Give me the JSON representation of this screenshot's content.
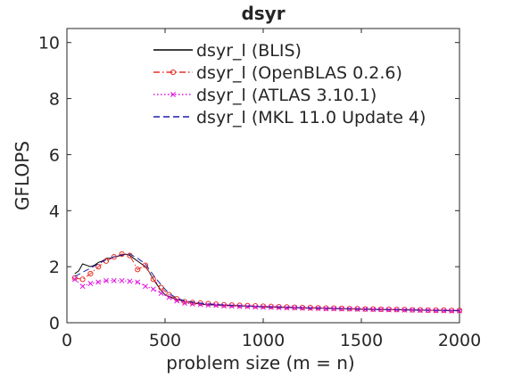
{
  "chart_data": {
    "type": "line",
    "title": "dsyr",
    "xlabel": "problem size (m = n)",
    "ylabel": "GFLOPS",
    "xlim": [
      0,
      2000
    ],
    "ylim": [
      0,
      10.5
    ],
    "xticks": [
      0,
      500,
      1000,
      1500,
      2000
    ],
    "yticks": [
      0,
      2,
      4,
      6,
      8,
      10
    ],
    "xtick_labels": [
      "0",
      "500",
      "1000",
      "1500",
      "2000"
    ],
    "ytick_labels": [
      "0",
      "2",
      "4",
      "6",
      "8",
      "10"
    ],
    "grid": false,
    "legend_position": "top",
    "series": [
      {
        "name": "dsyr_l (BLIS)",
        "color": "#000000",
        "style": "solid",
        "marker": "none",
        "x": [
          40,
          60,
          80,
          100,
          120,
          140,
          160,
          180,
          200,
          220,
          240,
          260,
          280,
          300,
          320,
          340,
          360,
          380,
          400,
          420,
          440,
          460,
          480,
          500,
          550,
          600,
          650,
          700,
          800,
          900,
          1000,
          1100,
          1200,
          1300,
          1400,
          1500,
          1600,
          1700,
          1800,
          1900,
          2000
        ],
        "y": [
          1.75,
          1.85,
          2.1,
          2.05,
          2.0,
          2.05,
          2.15,
          2.2,
          2.3,
          2.3,
          2.35,
          2.38,
          2.4,
          2.45,
          2.4,
          2.3,
          2.2,
          2.1,
          2.0,
          1.8,
          1.55,
          1.35,
          1.15,
          1.0,
          0.85,
          0.75,
          0.7,
          0.65,
          0.62,
          0.6,
          0.57,
          0.55,
          0.53,
          0.52,
          0.5,
          0.48,
          0.47,
          0.46,
          0.45,
          0.44,
          0.43
        ]
      },
      {
        "name": "dsyr_l (OpenBLAS 0.2.6)",
        "color": "#e8312a",
        "style": "dashdot",
        "marker": "circle",
        "x": [
          40,
          80,
          120,
          160,
          200,
          240,
          280,
          320,
          360,
          400,
          440,
          480,
          520,
          560,
          600,
          640,
          680,
          720,
          760,
          800,
          840,
          880,
          920,
          960,
          1000,
          1040,
          1080,
          1120,
          1160,
          1200,
          1240,
          1280,
          1320,
          1360,
          1400,
          1440,
          1480,
          1520,
          1560,
          1600,
          1640,
          1680,
          1720,
          1760,
          1800,
          1840,
          1880,
          1920,
          1960,
          2000
        ],
        "y": [
          1.6,
          1.55,
          1.75,
          2.0,
          2.2,
          2.35,
          2.45,
          2.4,
          1.9,
          2.05,
          1.55,
          1.25,
          1.0,
          0.85,
          0.75,
          0.72,
          0.7,
          0.68,
          0.66,
          0.64,
          0.63,
          0.62,
          0.61,
          0.6,
          0.59,
          0.58,
          0.57,
          0.56,
          0.55,
          0.54,
          0.54,
          0.53,
          0.52,
          0.52,
          0.51,
          0.5,
          0.5,
          0.49,
          0.49,
          0.48,
          0.48,
          0.47,
          0.47,
          0.46,
          0.46,
          0.45,
          0.45,
          0.45,
          0.44,
          0.44
        ]
      },
      {
        "name": "dsyr_l (ATLAS 3.10.1)",
        "color": "#e012e0",
        "style": "dotted",
        "marker": "x",
        "x": [
          40,
          80,
          120,
          160,
          200,
          240,
          280,
          320,
          360,
          400,
          440,
          480,
          520,
          560,
          600,
          640,
          680,
          720,
          760,
          800,
          840,
          880,
          920,
          960,
          1000,
          1040,
          1080,
          1120,
          1160,
          1200,
          1240,
          1280,
          1320,
          1360,
          1400,
          1440,
          1480,
          1520,
          1560,
          1600,
          1640,
          1680,
          1720,
          1760,
          1800,
          1840,
          1880,
          1920,
          1960,
          2000
        ],
        "y": [
          1.55,
          1.3,
          1.4,
          1.45,
          1.5,
          1.5,
          1.5,
          1.48,
          1.45,
          1.3,
          1.2,
          1.05,
          0.9,
          0.78,
          0.7,
          0.67,
          0.65,
          0.63,
          0.62,
          0.6,
          0.59,
          0.58,
          0.57,
          0.56,
          0.55,
          0.55,
          0.54,
          0.53,
          0.53,
          0.52,
          0.51,
          0.51,
          0.5,
          0.5,
          0.49,
          0.49,
          0.48,
          0.48,
          0.47,
          0.47,
          0.46,
          0.46,
          0.45,
          0.45,
          0.44,
          0.44,
          0.43,
          0.43,
          0.42,
          0.42
        ]
      },
      {
        "name": "dsyr_l (MKL 11.0 Update 4)",
        "color": "#1f1fa8",
        "style": "dashed",
        "marker": "none",
        "x": [
          40,
          80,
          120,
          160,
          200,
          240,
          280,
          320,
          360,
          400,
          440,
          480,
          520,
          560,
          600,
          700,
          800,
          900,
          1000,
          1200,
          1400,
          1600,
          1800,
          2000
        ],
        "y": [
          1.65,
          1.8,
          1.95,
          2.1,
          2.25,
          2.35,
          2.42,
          2.45,
          2.3,
          2.1,
          1.7,
          1.35,
          1.05,
          0.88,
          0.78,
          0.68,
          0.63,
          0.6,
          0.57,
          0.53,
          0.5,
          0.47,
          0.45,
          0.43
        ]
      }
    ]
  }
}
